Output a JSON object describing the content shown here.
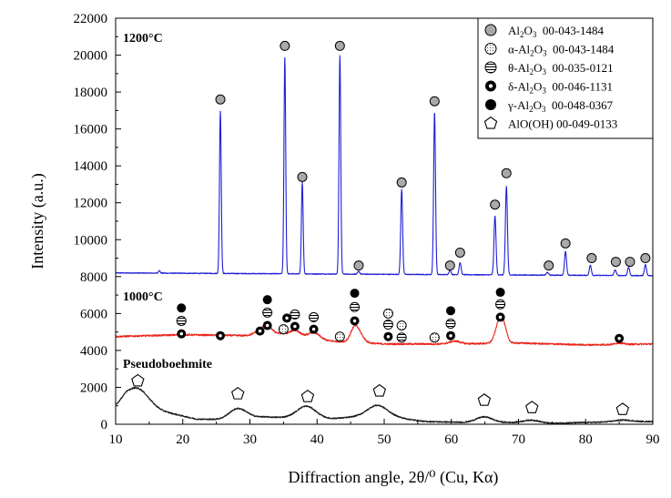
{
  "chart_data": {
    "type": "line",
    "title": "",
    "xlabel": "Diffraction angle, 2θ/⁰ (Cu, Kα)",
    "ylabel": "Intensity (a.u.)",
    "xlim": [
      10,
      90
    ],
    "ylim": [
      0,
      22000
    ],
    "xticks": [
      10,
      20,
      30,
      40,
      50,
      60,
      70,
      80,
      90
    ],
    "yticks": [
      0,
      2000,
      4000,
      6000,
      8000,
      10000,
      12000,
      14000,
      16000,
      18000,
      20000,
      22000
    ],
    "grid": false,
    "legend_position": "top-right",
    "colors": {
      "curve_1200": "#1f1fd6",
      "curve_1000": "#e8251b",
      "curve_pseudo": "#1a1a1a",
      "alpha_gray": "#a9a9a9",
      "marker_black": "#000000",
      "axis": "#000000"
    },
    "legend": [
      {
        "symbol": "gray-circle",
        "phase_pre": "Al",
        "sub1": "2",
        "mid": "O",
        "sub2": "3",
        "card": "00-043-1484"
      },
      {
        "symbol": "dotted-circle",
        "phase_pre": "α-Al",
        "sub1": "2",
        "mid": "O",
        "sub2": "3",
        "card": "00-043-1484"
      },
      {
        "symbol": "striped-circle",
        "phase_pre": "θ-Al",
        "sub1": "2",
        "mid": "O",
        "sub2": "3",
        "card": "00-035-0121"
      },
      {
        "symbol": "ring-circle",
        "phase_pre": "δ-Al",
        "sub1": "2",
        "mid": "O",
        "sub2": "3",
        "card": "00-046-1131"
      },
      {
        "symbol": "black-circle",
        "phase_pre": "γ-Al",
        "sub1": "2",
        "mid": "O",
        "sub2": "3",
        "card": "00-048-0367"
      },
      {
        "symbol": "pentagon",
        "phase_pre": "AlO(OH)",
        "sub1": "",
        "mid": "",
        "sub2": "",
        "card": "00-049-0133"
      }
    ],
    "series": [
      {
        "name": "1200°C",
        "label": "1200°C",
        "baseline": 8200,
        "background": [
          [
            10,
            8200
          ],
          [
            90,
            8050
          ]
        ],
        "peaks": [
          [
            16.5,
            150,
            0.12
          ],
          [
            25.6,
            8800,
            0.13
          ],
          [
            35.2,
            11700,
            0.13
          ],
          [
            37.8,
            4950,
            0.13
          ],
          [
            43.4,
            11850,
            0.13
          ],
          [
            46.2,
            150,
            0.15
          ],
          [
            52.6,
            4600,
            0.14
          ],
          [
            57.5,
            8800,
            0.14
          ],
          [
            59.8,
            250,
            0.15
          ],
          [
            61.3,
            650,
            0.15
          ],
          [
            66.5,
            3200,
            0.15
          ],
          [
            68.2,
            4800,
            0.15
          ],
          [
            74.3,
            150,
            0.16
          ],
          [
            77.0,
            1300,
            0.15
          ],
          [
            80.7,
            550,
            0.15
          ],
          [
            84.4,
            300,
            0.16
          ],
          [
            86.4,
            450,
            0.15
          ],
          [
            88.9,
            600,
            0.15
          ]
        ],
        "markers": [
          {
            "x": 25.6,
            "y": 17600,
            "symbol": "gray-circle"
          },
          {
            "x": 35.2,
            "y": 20500,
            "symbol": "gray-circle"
          },
          {
            "x": 37.8,
            "y": 13400,
            "symbol": "gray-circle"
          },
          {
            "x": 43.4,
            "y": 20500,
            "symbol": "gray-circle"
          },
          {
            "x": 46.2,
            "y": 8600,
            "symbol": "gray-circle"
          },
          {
            "x": 52.6,
            "y": 13100,
            "symbol": "gray-circle"
          },
          {
            "x": 57.5,
            "y": 17500,
            "symbol": "gray-circle"
          },
          {
            "x": 59.8,
            "y": 8600,
            "symbol": "gray-circle"
          },
          {
            "x": 61.3,
            "y": 9300,
            "symbol": "gray-circle"
          },
          {
            "x": 66.5,
            "y": 11900,
            "symbol": "gray-circle"
          },
          {
            "x": 68.2,
            "y": 13600,
            "symbol": "gray-circle"
          },
          {
            "x": 74.5,
            "y": 8600,
            "symbol": "gray-circle"
          },
          {
            "x": 77.0,
            "y": 9800,
            "symbol": "gray-circle"
          },
          {
            "x": 80.9,
            "y": 9000,
            "symbol": "gray-circle"
          },
          {
            "x": 84.5,
            "y": 8800,
            "symbol": "gray-circle"
          },
          {
            "x": 86.6,
            "y": 8800,
            "symbol": "gray-circle"
          },
          {
            "x": 88.9,
            "y": 9000,
            "symbol": "gray-circle"
          }
        ]
      },
      {
        "name": "1000°C",
        "label": "1000°C",
        "baseline": 4800,
        "background": [
          [
            10,
            4750
          ],
          [
            20,
            4850
          ],
          [
            30,
            4800
          ],
          [
            40,
            4550
          ],
          [
            50,
            4350
          ],
          [
            60,
            4350
          ],
          [
            70,
            4400
          ],
          [
            80,
            4300
          ],
          [
            90,
            4350
          ]
        ],
        "peaks": [
          [
            31.5,
            300,
            0.8
          ],
          [
            32.7,
            500,
            0.7
          ],
          [
            34.5,
            200,
            0.8
          ],
          [
            36.7,
            450,
            0.9
          ],
          [
            39.5,
            400,
            0.9
          ],
          [
            45.6,
            800,
            0.6
          ],
          [
            46.5,
            300,
            0.6
          ],
          [
            60.5,
            150,
            0.8
          ],
          [
            67.2,
            1200,
            0.6
          ],
          [
            67.8,
            500,
            0.5
          ],
          [
            85.0,
            80,
            0.6
          ]
        ],
        "markers": [
          {
            "x": 19.8,
            "y": 6300,
            "symbol": "black-circle"
          },
          {
            "x": 19.8,
            "y": 5600,
            "symbol": "striped-circle"
          },
          {
            "x": 19.8,
            "y": 4900,
            "symbol": "ring-circle"
          },
          {
            "x": 25.6,
            "y": 4800,
            "symbol": "ring-circle"
          },
          {
            "x": 31.5,
            "y": 5050,
            "symbol": "ring-circle"
          },
          {
            "x": 32.6,
            "y": 6750,
            "symbol": "black-circle"
          },
          {
            "x": 32.6,
            "y": 6050,
            "symbol": "striped-circle"
          },
          {
            "x": 32.6,
            "y": 5350,
            "symbol": "ring-circle"
          },
          {
            "x": 35.0,
            "y": 5150,
            "symbol": "dotted-circle"
          },
          {
            "x": 35.5,
            "y": 5750,
            "symbol": "ring-circle"
          },
          {
            "x": 36.7,
            "y": 5950,
            "symbol": "striped-circle"
          },
          {
            "x": 36.7,
            "y": 5300,
            "symbol": "ring-circle"
          },
          {
            "x": 39.5,
            "y": 5800,
            "symbol": "striped-circle"
          },
          {
            "x": 39.5,
            "y": 5150,
            "symbol": "ring-circle"
          },
          {
            "x": 43.4,
            "y": 4750,
            "symbol": "dotted-circle"
          },
          {
            "x": 45.6,
            "y": 7100,
            "symbol": "black-circle"
          },
          {
            "x": 45.6,
            "y": 6350,
            "symbol": "striped-circle"
          },
          {
            "x": 45.6,
            "y": 5600,
            "symbol": "ring-circle"
          },
          {
            "x": 50.6,
            "y": 6000,
            "symbol": "dotted-circle"
          },
          {
            "x": 50.6,
            "y": 5400,
            "symbol": "striped-circle"
          },
          {
            "x": 50.6,
            "y": 4750,
            "symbol": "ring-circle"
          },
          {
            "x": 52.6,
            "y": 5350,
            "symbol": "dotted-circle"
          },
          {
            "x": 52.6,
            "y": 4700,
            "symbol": "striped-circle"
          },
          {
            "x": 57.5,
            "y": 4700,
            "symbol": "dotted-circle"
          },
          {
            "x": 59.9,
            "y": 6150,
            "symbol": "black-circle"
          },
          {
            "x": 59.9,
            "y": 5450,
            "symbol": "striped-circle"
          },
          {
            "x": 59.9,
            "y": 4800,
            "symbol": "ring-circle"
          },
          {
            "x": 67.3,
            "y": 7150,
            "symbol": "black-circle"
          },
          {
            "x": 67.3,
            "y": 6500,
            "symbol": "striped-circle"
          },
          {
            "x": 67.3,
            "y": 5800,
            "symbol": "ring-circle"
          },
          {
            "x": 85.0,
            "y": 4650,
            "symbol": "ring-circle"
          }
        ]
      },
      {
        "name": "Pseudoboehmite",
        "label": "Pseudoboehmite",
        "baseline": 100,
        "background": [
          [
            10,
            950
          ],
          [
            11.5,
            1300
          ],
          [
            17,
            700
          ],
          [
            22,
            280
          ],
          [
            26,
            250
          ],
          [
            32,
            400
          ],
          [
            36,
            350
          ],
          [
            42,
            300
          ],
          [
            46,
            400
          ],
          [
            52,
            350
          ],
          [
            56,
            150
          ],
          [
            62,
            100
          ],
          [
            68,
            100
          ],
          [
            75,
            50
          ],
          [
            80,
            100
          ],
          [
            90,
            150
          ]
        ],
        "peaks": [
          [
            13.3,
            850,
            1.6
          ],
          [
            28.2,
            550,
            1.3
          ],
          [
            38.4,
            650,
            1.4
          ],
          [
            49.0,
            650,
            1.5
          ],
          [
            64.9,
            300,
            1.2
          ],
          [
            71.9,
            150,
            1.2
          ],
          [
            85.5,
            100,
            1.3
          ]
        ],
        "markers": [
          {
            "x": 13.3,
            "y": 2350,
            "symbol": "pentagon"
          },
          {
            "x": 28.2,
            "y": 1650,
            "symbol": "pentagon"
          },
          {
            "x": 38.6,
            "y": 1500,
            "symbol": "pentagon"
          },
          {
            "x": 49.3,
            "y": 1800,
            "symbol": "pentagon"
          },
          {
            "x": 64.9,
            "y": 1300,
            "symbol": "pentagon"
          },
          {
            "x": 72.0,
            "y": 900,
            "symbol": "pentagon"
          },
          {
            "x": 85.5,
            "y": 800,
            "symbol": "pentagon"
          }
        ]
      }
    ]
  }
}
